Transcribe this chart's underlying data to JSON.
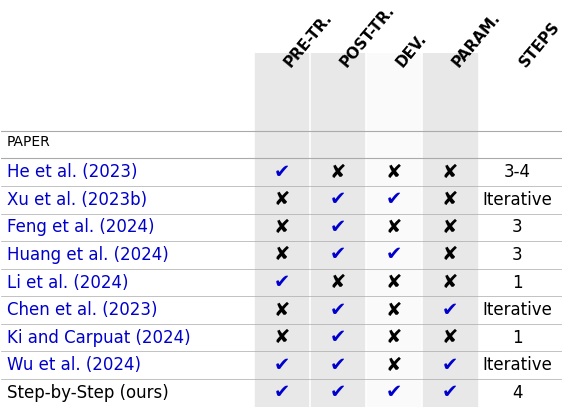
{
  "headers": [
    "PRE-TR.",
    "POST-TR.",
    "DEV.",
    "PARAM.",
    "STEPS"
  ],
  "header_label": "PAPER",
  "rows": [
    {
      "paper": "He et al. (2023)",
      "marks": [
        1,
        0,
        0,
        0
      ],
      "steps": "3-4"
    },
    {
      "paper": "Xu et al. (2023b)",
      "marks": [
        0,
        1,
        1,
        0
      ],
      "steps": "Iterative"
    },
    {
      "paper": "Feng et al. (2024)",
      "marks": [
        0,
        1,
        0,
        0
      ],
      "steps": "3"
    },
    {
      "paper": "Huang et al. (2024)",
      "marks": [
        0,
        1,
        1,
        0
      ],
      "steps": "3"
    },
    {
      "paper": "Li et al. (2024)",
      "marks": [
        1,
        0,
        0,
        0
      ],
      "steps": "1"
    },
    {
      "paper": "Chen et al. (2023)",
      "marks": [
        0,
        1,
        0,
        1
      ],
      "steps": "Iterative"
    },
    {
      "paper": "Ki and Carpuat (2024)",
      "marks": [
        0,
        1,
        0,
        0
      ],
      "steps": "1"
    },
    {
      "paper": "Wu et al. (2024)",
      "marks": [
        1,
        1,
        0,
        1
      ],
      "steps": "Iterative"
    },
    {
      "paper": "Step-by-Step (ours)",
      "marks": [
        1,
        1,
        1,
        1
      ],
      "steps": "4"
    }
  ],
  "check_color": "#0000CC",
  "cross_color": "#000000",
  "paper_color": "#0000CC",
  "last_row_paper_color": "#000000",
  "header_bg": "#D3D3D3",
  "col_bg_shaded": "#E8E8E8",
  "col_bg_white": "#FFFFFF",
  "row_bg_even": "#FFFFFF",
  "row_bg_odd": "#F0F0F0",
  "fig_bg": "#FFFFFF",
  "header_fontsize": 11,
  "cell_fontsize": 12,
  "paper_fontsize": 12,
  "steps_fontsize": 12,
  "label_fontsize": 10
}
